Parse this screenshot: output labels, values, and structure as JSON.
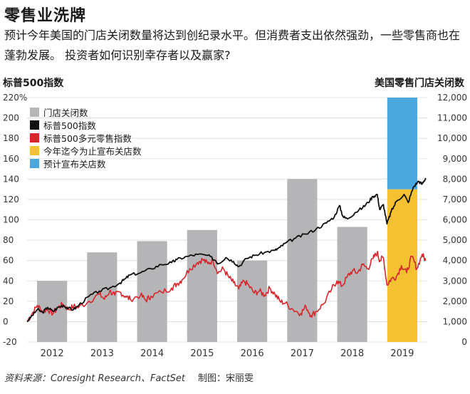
{
  "title": "零售业洗牌",
  "subtitle": "预计今年美国的门店关闭数量将达到创纪录水平。但消费者支出依然强劲，一些零售商也在蓬勃发展。 投资者如何识别幸存者以及赢家?",
  "left_axis_title": "标普500指数",
  "right_axis_title": "美国零售门店关闭数",
  "footer_source": "资料来源：Coresight Research、FactSet",
  "footer_author": "制图：宋丽雯",
  "colors": {
    "store_closures": "#b5b5b7",
    "sp500": "#111111",
    "retail_index": "#d7272d",
    "announced_ytd": "#f4c133",
    "projected": "#4aa8df"
  },
  "chart_data": {
    "type": "bar",
    "left_axis": {
      "ticks": [
        "220%",
        "200",
        "180",
        "160",
        "140",
        "120",
        "100",
        "80",
        "60",
        "40",
        "20",
        "0",
        "-20"
      ],
      "ylim": [
        -20,
        220
      ]
    },
    "right_axis": {
      "ticks": [
        "12,000",
        "11,000",
        "10,000",
        "9,000",
        "8,000",
        "7,000",
        "6,000",
        "5,000",
        "4,000",
        "3,000",
        "2,000",
        "1,000",
        "0"
      ],
      "ylim": [
        0,
        12000
      ]
    },
    "categories": [
      "2012",
      "2013",
      "2014",
      "2015",
      "2016",
      "2017",
      "2018",
      "2019"
    ],
    "legend": [
      {
        "key": "store_closures",
        "label": "门店关闭数"
      },
      {
        "key": "sp500",
        "label": "标普500指数"
      },
      {
        "key": "retail_index",
        "label": "标普500多元零售指数"
      },
      {
        "key": "announced_ytd",
        "label": "今年迄今为止宣布关店数"
      },
      {
        "key": "projected",
        "label": "预计宣布关店数"
      }
    ],
    "store_closures": [
      3000,
      4400,
      4950,
      5500,
      4000,
      8000,
      5650
    ],
    "store_closures_2019": {
      "announced_ytd": 7500,
      "projected": 12000
    },
    "sp500_series": [
      [
        2012.0,
        0
      ],
      [
        2012.1,
        6
      ],
      [
        2012.2,
        12
      ],
      [
        2012.3,
        9
      ],
      [
        2012.4,
        14
      ],
      [
        2012.5,
        10
      ],
      [
        2012.6,
        14
      ],
      [
        2012.7,
        16
      ],
      [
        2012.8,
        13
      ],
      [
        2012.9,
        12
      ],
      [
        2013.0,
        16
      ],
      [
        2013.2,
        25
      ],
      [
        2013.4,
        30
      ],
      [
        2013.6,
        33
      ],
      [
        2013.8,
        38
      ],
      [
        2013.9,
        42
      ],
      [
        2014.0,
        46
      ],
      [
        2014.2,
        48
      ],
      [
        2014.4,
        52
      ],
      [
        2014.6,
        56
      ],
      [
        2014.8,
        58
      ],
      [
        2014.9,
        61
      ],
      [
        2015.1,
        64
      ],
      [
        2015.3,
        66
      ],
      [
        2015.5,
        65
      ],
      [
        2015.65,
        60
      ],
      [
        2015.7,
        57
      ],
      [
        2015.85,
        63
      ],
      [
        2016.0,
        59
      ],
      [
        2016.1,
        54
      ],
      [
        2016.25,
        62
      ],
      [
        2016.4,
        65
      ],
      [
        2016.6,
        68
      ],
      [
        2016.8,
        70
      ],
      [
        2016.9,
        73
      ],
      [
        2017.0,
        77
      ],
      [
        2017.2,
        82
      ],
      [
        2017.4,
        86
      ],
      [
        2017.6,
        91
      ],
      [
        2017.8,
        97
      ],
      [
        2017.95,
        103
      ],
      [
        2018.05,
        114
      ],
      [
        2018.12,
        103
      ],
      [
        2018.2,
        101
      ],
      [
        2018.35,
        107
      ],
      [
        2018.5,
        112
      ],
      [
        2018.6,
        117
      ],
      [
        2018.7,
        123
      ],
      [
        2018.78,
        125
      ],
      [
        2018.83,
        110
      ],
      [
        2018.9,
        115
      ],
      [
        2018.97,
        96
      ],
      [
        2019.05,
        108
      ],
      [
        2019.15,
        118
      ],
      [
        2019.3,
        125
      ],
      [
        2019.38,
        117
      ],
      [
        2019.48,
        132
      ],
      [
        2019.58,
        138
      ],
      [
        2019.65,
        135
      ],
      [
        2019.72,
        141
      ]
    ],
    "retail_series": [
      [
        2012.0,
        0
      ],
      [
        2012.1,
        8
      ],
      [
        2012.2,
        16
      ],
      [
        2012.3,
        10
      ],
      [
        2012.4,
        12
      ],
      [
        2012.5,
        8
      ],
      [
        2012.6,
        14
      ],
      [
        2012.7,
        17
      ],
      [
        2012.8,
        12
      ],
      [
        2012.9,
        15
      ],
      [
        2013.0,
        14
      ],
      [
        2013.2,
        20
      ],
      [
        2013.4,
        27
      ],
      [
        2013.5,
        22
      ],
      [
        2013.6,
        30
      ],
      [
        2013.7,
        26
      ],
      [
        2013.8,
        29
      ],
      [
        2013.9,
        25
      ],
      [
        2014.0,
        22
      ],
      [
        2014.2,
        26
      ],
      [
        2014.3,
        21
      ],
      [
        2014.4,
        25
      ],
      [
        2014.6,
        29
      ],
      [
        2014.8,
        33
      ],
      [
        2014.9,
        37
      ],
      [
        2015.0,
        41
      ],
      [
        2015.15,
        52
      ],
      [
        2015.3,
        58
      ],
      [
        2015.4,
        61
      ],
      [
        2015.5,
        57
      ],
      [
        2015.6,
        60
      ],
      [
        2015.7,
        48
      ],
      [
        2015.8,
        52
      ],
      [
        2015.9,
        44
      ],
      [
        2016.0,
        38
      ],
      [
        2016.1,
        32
      ],
      [
        2016.2,
        40
      ],
      [
        2016.3,
        35
      ],
      [
        2016.4,
        28
      ],
      [
        2016.5,
        30
      ],
      [
        2016.6,
        26
      ],
      [
        2016.7,
        33
      ],
      [
        2016.8,
        27
      ],
      [
        2016.9,
        20
      ],
      [
        2017.0,
        18
      ],
      [
        2017.15,
        12
      ],
      [
        2017.3,
        8
      ],
      [
        2017.4,
        15
      ],
      [
        2017.5,
        6
      ],
      [
        2017.6,
        10
      ],
      [
        2017.75,
        18
      ],
      [
        2017.9,
        32
      ],
      [
        2018.0,
        40
      ],
      [
        2018.1,
        35
      ],
      [
        2018.2,
        44
      ],
      [
        2018.3,
        50
      ],
      [
        2018.4,
        48
      ],
      [
        2018.5,
        56
      ],
      [
        2018.6,
        52
      ],
      [
        2018.7,
        62
      ],
      [
        2018.78,
        68
      ],
      [
        2018.83,
        60
      ],
      [
        2018.9,
        63
      ],
      [
        2018.97,
        36
      ],
      [
        2019.05,
        42
      ],
      [
        2019.15,
        44
      ],
      [
        2019.25,
        55
      ],
      [
        2019.35,
        48
      ],
      [
        2019.45,
        64
      ],
      [
        2019.55,
        52
      ],
      [
        2019.65,
        66
      ],
      [
        2019.72,
        60
      ]
    ]
  }
}
